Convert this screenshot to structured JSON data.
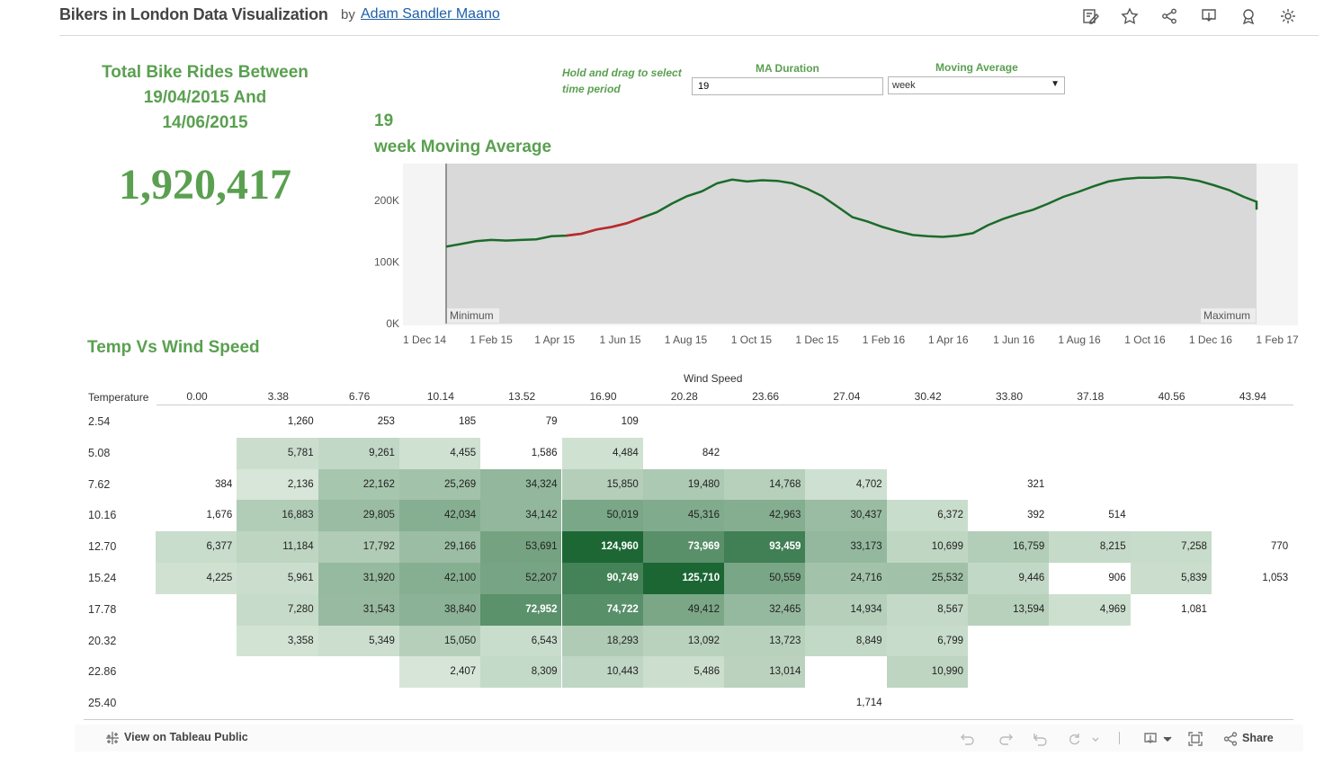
{
  "header": {
    "title": "Bikers in London Data Visualization",
    "by": "by",
    "author": "Adam Sandler Maano",
    "icons": [
      "edit-icon",
      "star-icon",
      "share-icon",
      "download-icon",
      "award-icon",
      "settings-icon"
    ]
  },
  "kpi": {
    "title_line1": "Total Bike Rides Between",
    "title_line2": "19/04/2015 And",
    "title_line3": "14/06/2015",
    "value": "1,920,417"
  },
  "controls": {
    "hint_line1": "Hold and drag to select",
    "hint_line2": "time period",
    "ma_duration_label": "MA Duration",
    "ma_duration_value": "19",
    "moving_average_label": "Moving Average",
    "moving_average_value": "week"
  },
  "line_title": {
    "line1": "19",
    "line2": "week Moving Average"
  },
  "chart_data": [
    {
      "type": "line",
      "title": "19 week Moving Average",
      "y_ticks": [
        "200K",
        "100K",
        "0K"
      ],
      "ylim": [
        0,
        260000
      ],
      "x_ticks": [
        "1 Dec 14",
        "1 Feb 15",
        "1 Apr 15",
        "1 Jun 15",
        "1 Aug 15",
        "1 Oct 15",
        "1 Dec 15",
        "1 Feb 16",
        "1 Apr 16",
        "1 Jun 16",
        "1 Aug 16",
        "1 Oct 16",
        "1 Dec 16",
        "1 Feb 17"
      ],
      "range_labels": {
        "min": "Minimum",
        "max": "Maximum"
      },
      "colors": {
        "line": "#1b6b2a",
        "highlight": "#c0272d",
        "plot_bg": "#d9d9d9"
      },
      "x": [
        "2015-01-04",
        "2015-01-18",
        "2015-02-01",
        "2015-02-15",
        "2015-03-01",
        "2015-03-15",
        "2015-03-29",
        "2015-04-12",
        "2015-04-26",
        "2015-05-10",
        "2015-05-24",
        "2015-06-07",
        "2015-06-21",
        "2015-07-05",
        "2015-07-19",
        "2015-08-02",
        "2015-08-16",
        "2015-08-30",
        "2015-09-13",
        "2015-09-27",
        "2015-10-11",
        "2015-10-25",
        "2015-11-08",
        "2015-11-22",
        "2015-12-06",
        "2015-12-20",
        "2016-01-03",
        "2016-01-17",
        "2016-01-31",
        "2016-02-14",
        "2016-02-28",
        "2016-03-13",
        "2016-03-27",
        "2016-04-10",
        "2016-04-24",
        "2016-05-08",
        "2016-05-22",
        "2016-06-05",
        "2016-06-19",
        "2016-07-03",
        "2016-07-17",
        "2016-07-31",
        "2016-08-14",
        "2016-08-28",
        "2016-09-11",
        "2016-09-25",
        "2016-10-09",
        "2016-10-23",
        "2016-11-06",
        "2016-11-20",
        "2016-12-04",
        "2016-12-18",
        "2017-01-01",
        "2017-01-15",
        "2017-01-29"
      ],
      "series": [
        {
          "values": [
            125000,
            134000,
            136000,
            135000,
            136000,
            137000,
            142000,
            143000,
            146000,
            153000,
            157000,
            163000,
            172000,
            181000,
            195000,
            207000,
            215000,
            228000,
            234000,
            231000,
            233000,
            232000,
            228000,
            219000,
            207000,
            190000,
            173000,
            166000,
            157000,
            150000,
            144000,
            142000,
            141000,
            143000,
            147000,
            160000,
            170000,
            178000,
            185000,
            195000,
            206000,
            214000,
            223000,
            231000,
            235000,
            237000,
            237000,
            238000,
            236000,
            232000,
            225000,
            217000,
            206000,
            198000,
            185000
          ],
          "highlight_range": [
            "2015-04-19",
            "2015-06-14"
          ]
        }
      ]
    },
    {
      "type": "heatmap",
      "title": "Temp Vs Wind Speed",
      "xlabel": "Wind Speed",
      "ylabel": "Temperature",
      "x": [
        "0.00",
        "3.38",
        "6.76",
        "10.14",
        "13.52",
        "16.90",
        "20.28",
        "23.66",
        "27.04",
        "30.42",
        "33.80",
        "37.18",
        "40.56",
        "43.94"
      ],
      "y": [
        "2.54",
        "5.08",
        "7.62",
        "10.16",
        "12.70",
        "15.24",
        "17.78",
        "20.32",
        "22.86",
        "25.40"
      ],
      "values": [
        [
          null,
          1260,
          253,
          185,
          79,
          109,
          null,
          null,
          null,
          null,
          null,
          null,
          null,
          null
        ],
        [
          null,
          5781,
          9261,
          4455,
          1586,
          4484,
          842,
          null,
          null,
          null,
          null,
          null,
          null,
          null
        ],
        [
          384,
          2136,
          22162,
          25269,
          34324,
          15850,
          19480,
          14768,
          4702,
          null,
          321,
          null,
          null,
          null
        ],
        [
          1676,
          16883,
          29805,
          42034,
          34142,
          50019,
          45316,
          42963,
          30437,
          6372,
          392,
          514,
          null,
          null
        ],
        [
          6377,
          11184,
          17792,
          29166,
          53691,
          124960,
          73969,
          93459,
          33173,
          10699,
          16759,
          8215,
          7258,
          770
        ],
        [
          4225,
          5961,
          31920,
          42100,
          52207,
          90749,
          125710,
          50559,
          24716,
          25532,
          9446,
          906,
          5839,
          1053
        ],
        [
          null,
          7280,
          31543,
          38840,
          72952,
          74722,
          49412,
          32465,
          14934,
          8567,
          13594,
          4969,
          1081,
          null
        ],
        [
          null,
          3358,
          5349,
          15050,
          6543,
          18293,
          13092,
          13723,
          8849,
          6799,
          null,
          null,
          null,
          null
        ],
        [
          null,
          null,
          null,
          2407,
          8309,
          10443,
          5486,
          13014,
          null,
          10990,
          null,
          null,
          null,
          null
        ],
        [
          null,
          null,
          null,
          null,
          null,
          null,
          null,
          null,
          1714,
          null,
          null,
          null,
          null,
          null
        ]
      ]
    }
  ],
  "heatmap_title": "Temp Vs Wind Speed",
  "footer": {
    "view_public": "View on Tableau Public",
    "share": "Share"
  }
}
